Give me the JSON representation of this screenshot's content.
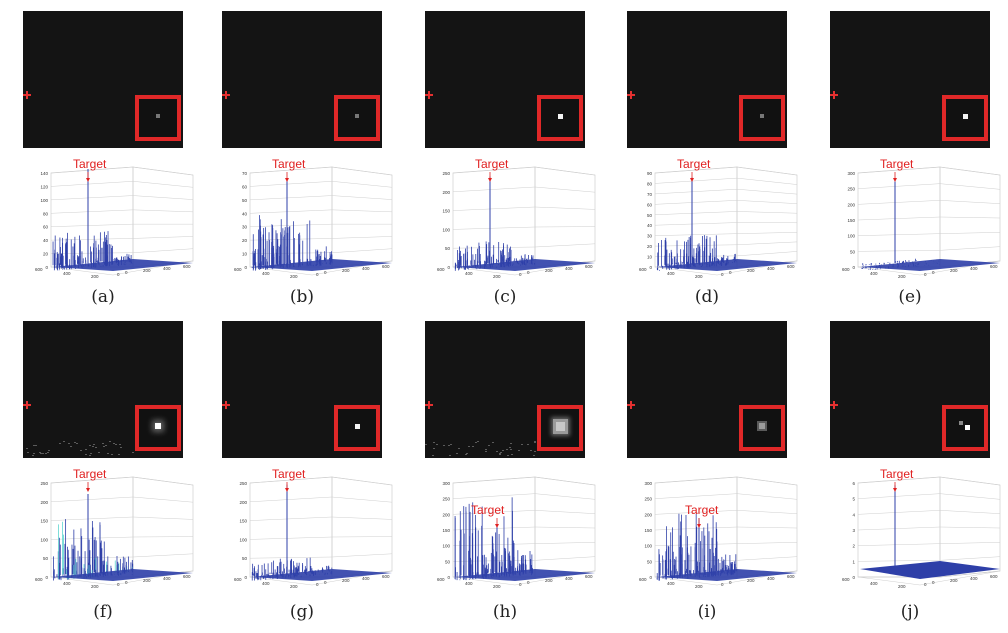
{
  "target_label": "Target",
  "captions": [
    "(a)",
    "(b)",
    "(c)",
    "(d)",
    "(e)",
    "(f)",
    "(g)",
    "(h)",
    "(i)",
    "(j)"
  ],
  "panels": [
    {
      "id": "a",
      "zmax": 140,
      "zticks": [
        "0",
        "20",
        "40",
        "60",
        "80",
        "100",
        "120",
        "140"
      ],
      "peak": 140,
      "clutter": 50,
      "spot": "dim-small"
    },
    {
      "id": "b",
      "zmax": 70,
      "zticks": [
        "0",
        "10",
        "20",
        "30",
        "40",
        "50",
        "60",
        "70"
      ],
      "peak": 62,
      "clutter": 38,
      "spot": "dim-small"
    },
    {
      "id": "c",
      "zmax": 250,
      "zticks": [
        "0",
        "50",
        "100",
        "150",
        "200",
        "250"
      ],
      "peak": 230,
      "clutter": 60,
      "spot": "bright-small"
    },
    {
      "id": "d",
      "zmax": 90,
      "zticks": [
        "0",
        "10",
        "20",
        "30",
        "40",
        "50",
        "60",
        "70",
        "80",
        "90"
      ],
      "peak": 82,
      "clutter": 30,
      "spot": "dim-small"
    },
    {
      "id": "e",
      "zmax": 300,
      "zticks": [
        "0",
        "50",
        "100",
        "150",
        "200",
        "250",
        "300"
      ],
      "peak": 260,
      "clutter": 8,
      "spot": "bright-small"
    },
    {
      "id": "f",
      "zmax": 250,
      "zticks": [
        "0",
        "50",
        "100",
        "150",
        "200",
        "250"
      ],
      "peak": 210,
      "clutter": 150,
      "spot": "bright-glow"
    },
    {
      "id": "g",
      "zmax": 250,
      "zticks": [
        "0",
        "50",
        "100",
        "150",
        "200",
        "250"
      ],
      "peak": 235,
      "clutter": 40,
      "spot": "bright-small"
    },
    {
      "id": "h",
      "zmax": 300,
      "zticks": [
        "0",
        "50",
        "100",
        "150",
        "200",
        "250",
        "300"
      ],
      "peak": 150,
      "clutter": 240,
      "spot": "large-blur"
    },
    {
      "id": "i",
      "zmax": 300,
      "zticks": [
        "0",
        "50",
        "100",
        "150",
        "200",
        "250",
        "300"
      ],
      "peak": 175,
      "clutter": 200,
      "spot": "medium-blur"
    },
    {
      "id": "j",
      "zmax": 6,
      "zticks": [
        "0",
        "1",
        "2",
        "3",
        "4",
        "5",
        "6"
      ],
      "peak": 5.6,
      "clutter": 0.1,
      "spot": "pair"
    }
  ],
  "axis_ticks": {
    "left": [
      "400",
      "200"
    ],
    "right": [
      "0",
      "0",
      "200",
      "400",
      "600"
    ],
    "corner": "600"
  },
  "colors": {
    "accent": "#e02828",
    "surface": "#2e3fa8",
    "target": "#e02020"
  }
}
